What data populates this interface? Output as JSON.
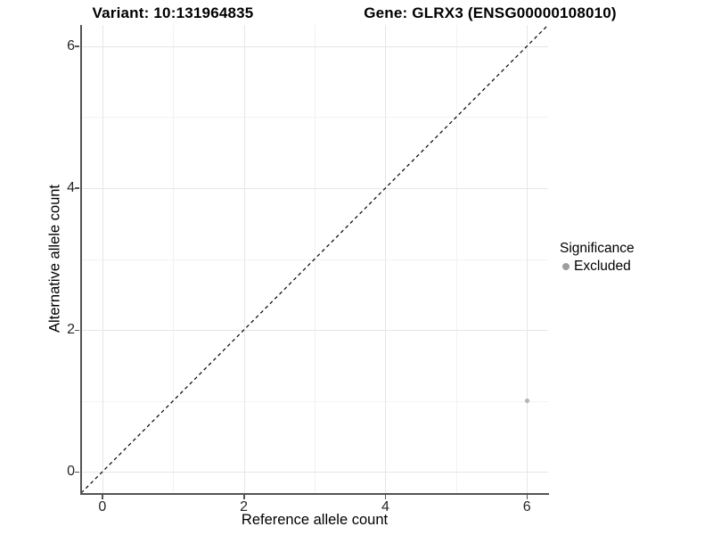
{
  "titles": {
    "left": "Variant: 10:131964835",
    "right": "Gene: GLRX3 (ENSG00000108010)"
  },
  "chart_data": {
    "type": "scatter",
    "xlabel": "Reference allele count",
    "ylabel": "Alternative allele count",
    "xlim": [
      -0.3,
      6.3
    ],
    "ylim": [
      -0.3,
      6.3
    ],
    "x_ticks": [
      0,
      2,
      4,
      6
    ],
    "y_ticks": [
      0,
      2,
      4,
      6
    ],
    "x_minor_ticks": [
      1,
      3,
      5
    ],
    "y_minor_ticks": [
      1,
      3,
      5
    ],
    "grid": true,
    "identity_line": {
      "style": "dashed",
      "x1": -0.3,
      "y1": -0.3,
      "x2": 6.3,
      "y2": 6.3
    },
    "series": [
      {
        "name": "Excluded",
        "points": [
          {
            "x": 6,
            "y": 1
          }
        ]
      }
    ],
    "legend": {
      "title": "Significance",
      "position": "right",
      "items": [
        {
          "label": "Excluded"
        }
      ]
    }
  },
  "colors": {
    "point": "#b3b3b3",
    "legend_point": "#9e9e9e",
    "axis": "#545454",
    "grid_major": "#e6e6e6",
    "grid_minor": "#f2f2f2",
    "identity_line": "#000000"
  }
}
